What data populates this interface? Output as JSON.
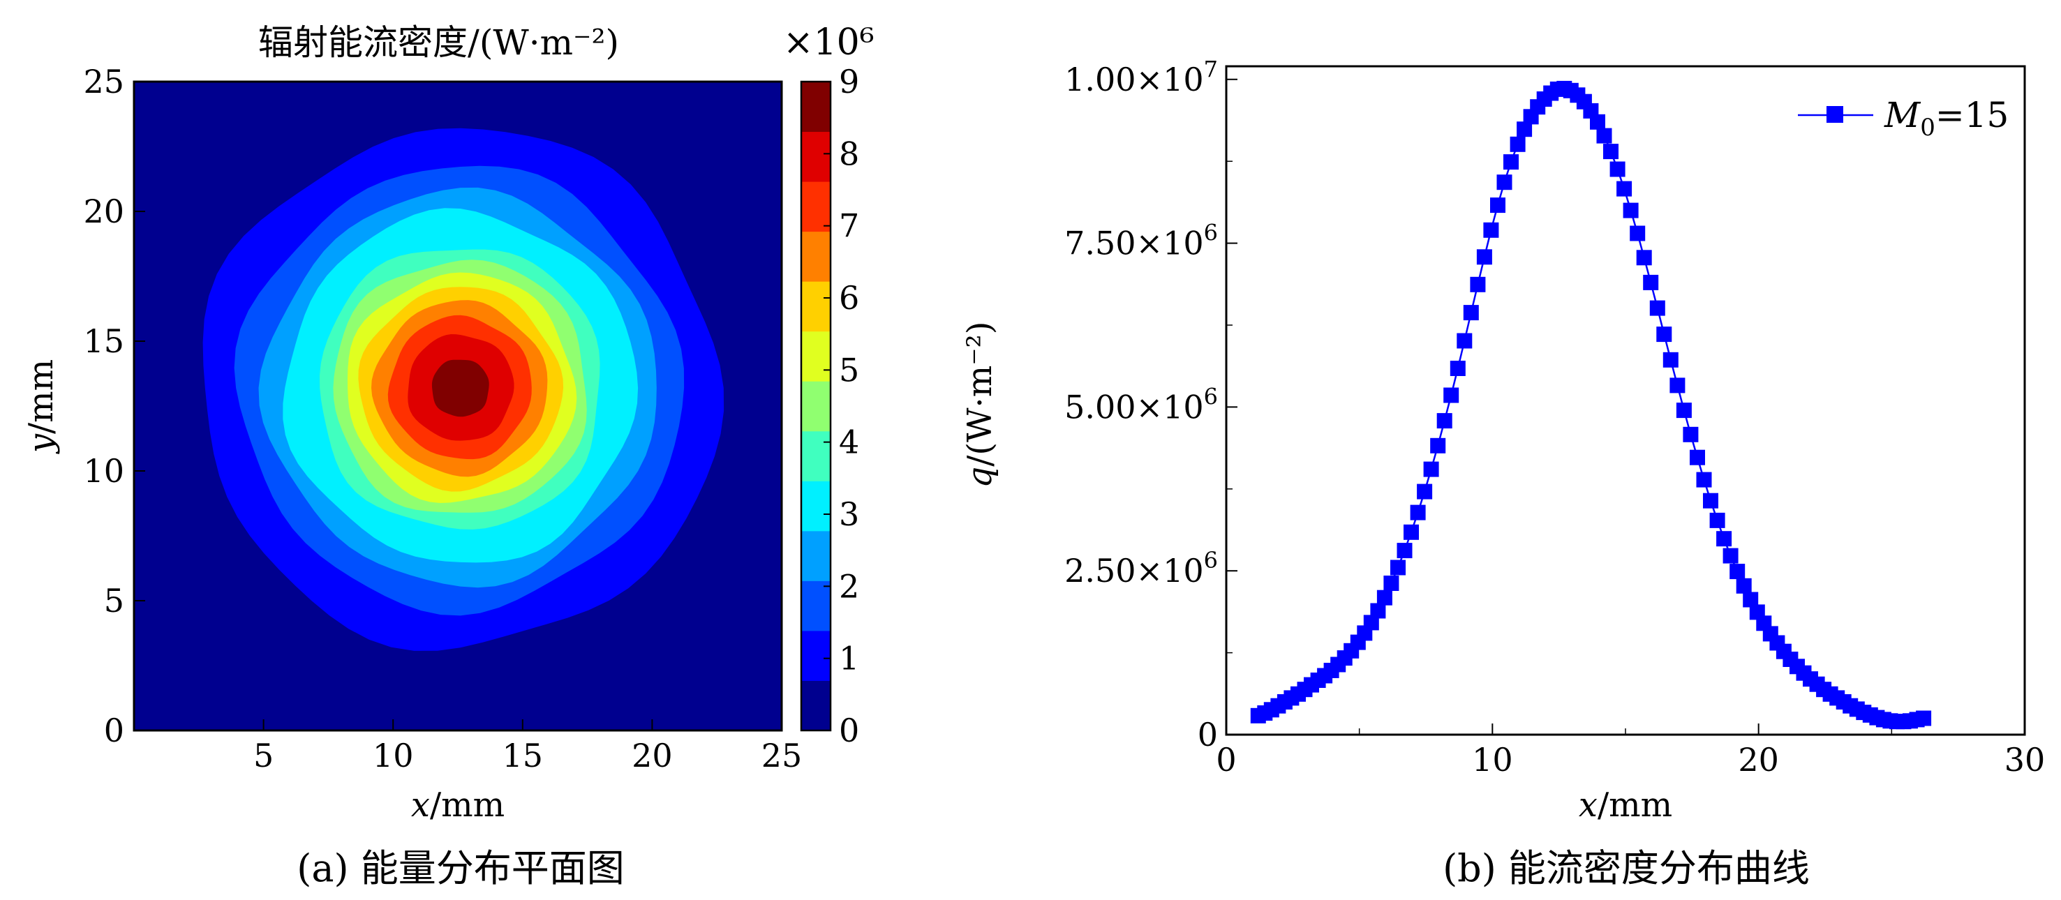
{
  "captions": {
    "left": "(a) 能量分布平面图",
    "right": "(b) 能流密度分布曲线"
  },
  "chart_data": [
    {
      "type": "heatmap",
      "title": "辐射能流密度/(W·m⁻²)",
      "xlabel_var": "x",
      "xlabel_unit": "/mm",
      "ylabel_var": "y",
      "ylabel_unit": "/mm",
      "xlim": [
        0,
        25
      ],
      "ylim": [
        0,
        25
      ],
      "xticks": [
        5,
        10,
        15,
        20,
        25
      ],
      "yticks": [
        0,
        5,
        10,
        15,
        20,
        25
      ],
      "colorbar": {
        "label": "×10⁶",
        "ticks": [
          0,
          1,
          2,
          3,
          4,
          5,
          6,
          7,
          8,
          9
        ],
        "range": [
          0,
          9
        ],
        "colormap": "jet",
        "colors": [
          "#00008f",
          "#0000ff",
          "#0050ff",
          "#00a0ff",
          "#00f0ff",
          "#40ffbf",
          "#90ff70",
          "#e0ff20",
          "#ffd000",
          "#ff8000",
          "#ff3000",
          "#df0000",
          "#800000"
        ]
      },
      "center": [
        12.6,
        13.2
      ],
      "peak": 9.0,
      "sigma": 4.3
    },
    {
      "type": "line",
      "xlabel_var": "x",
      "xlabel_unit": "/mm",
      "ylabel_var": "q",
      "ylabel_unit": "/(W·m⁻²)",
      "xlim": [
        0,
        30
      ],
      "ylim": [
        0,
        10200000
      ],
      "xticks": [
        "0",
        "10",
        "20",
        "30"
      ],
      "yticks": [
        {
          "value": 0,
          "mant": "0",
          "exp": ""
        },
        {
          "value": 2500000,
          "mant": "2.50×10",
          "exp": "6"
        },
        {
          "value": 5000000,
          "mant": "5.00×10",
          "exp": "6"
        },
        {
          "value": 7500000,
          "mant": "7.50×10",
          "exp": "6"
        },
        {
          "value": 10000000,
          "mant": "1.00×10",
          "exp": "7"
        }
      ],
      "series": [
        {
          "name": "M0=15",
          "name_var": "M",
          "name_sub": "0",
          "name_rest": "=15",
          "color": "#0000ff",
          "marker": "square"
        }
      ],
      "legend_position": "top-right",
      "x": [
        1.2,
        1.45,
        1.7,
        1.95,
        2.2,
        2.45,
        2.7,
        2.95,
        3.2,
        3.45,
        3.7,
        3.95,
        4.2,
        4.45,
        4.7,
        4.95,
        5.2,
        5.45,
        5.7,
        5.95,
        6.2,
        6.45,
        6.7,
        6.95,
        7.2,
        7.45,
        7.7,
        7.95,
        8.2,
        8.45,
        8.7,
        8.95,
        9.2,
        9.45,
        9.7,
        9.95,
        10.2,
        10.45,
        10.7,
        10.95,
        11.2,
        11.45,
        11.7,
        11.95,
        12.2,
        12.45,
        12.7,
        12.95,
        13.2,
        13.45,
        13.7,
        13.95,
        14.2,
        14.45,
        14.7,
        14.95,
        15.2,
        15.45,
        15.7,
        15.95,
        16.2,
        16.45,
        16.7,
        16.95,
        17.2,
        17.45,
        17.7,
        17.95,
        18.2,
        18.45,
        18.7,
        18.95,
        19.2,
        19.45,
        19.7,
        19.95,
        20.2,
        20.45,
        20.7,
        20.95,
        21.2,
        21.45,
        21.7,
        21.95,
        22.2,
        22.45,
        22.7,
        22.95,
        23.2,
        23.45,
        23.7,
        23.95,
        24.2,
        24.45,
        24.7,
        24.95,
        25.2,
        25.45,
        25.7,
        25.95,
        26.2
      ],
      "y": [
        290000,
        330000,
        380000,
        440000,
        500000,
        560000,
        620000,
        690000,
        760000,
        830000,
        900000,
        980000,
        1070000,
        1170000,
        1280000,
        1410000,
        1550000,
        1710000,
        1890000,
        2090000,
        2310000,
        2550000,
        2810000,
        3090000,
        3390000,
        3710000,
        4050000,
        4410000,
        4790000,
        5180000,
        5590000,
        6010000,
        6440000,
        6870000,
        7290000,
        7700000,
        8080000,
        8430000,
        8740000,
        9010000,
        9240000,
        9430000,
        9580000,
        9700000,
        9790000,
        9850000,
        9860000,
        9830000,
        9760000,
        9660000,
        9520000,
        9350000,
        9140000,
        8900000,
        8630000,
        8330000,
        8000000,
        7650000,
        7280000,
        6900000,
        6510000,
        6110000,
        5720000,
        5330000,
        4950000,
        4580000,
        4230000,
        3890000,
        3570000,
        3270000,
        2990000,
        2730000,
        2490000,
        2270000,
        2060000,
        1870000,
        1700000,
        1540000,
        1400000,
        1270000,
        1150000,
        1040000,
        940000,
        850000,
        770000,
        690000,
        620000,
        560000,
        500000,
        440000,
        390000,
        340000,
        300000,
        260000,
        230000,
        210000,
        200000,
        200000,
        210000,
        230000,
        250000
      ]
    }
  ]
}
